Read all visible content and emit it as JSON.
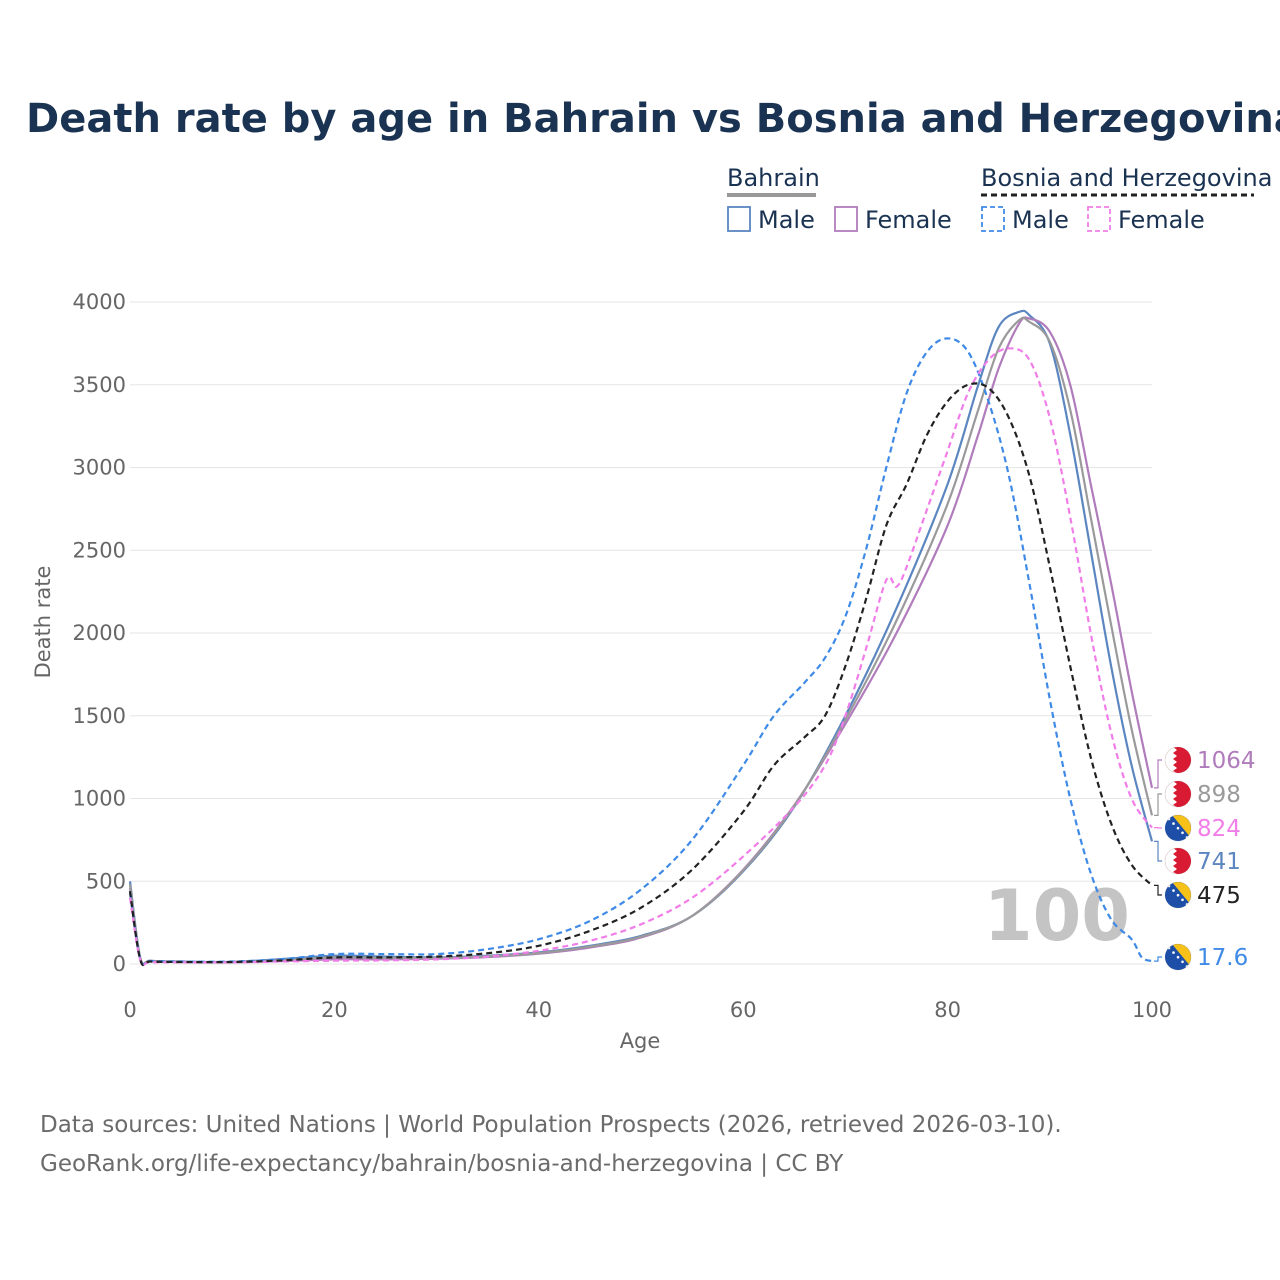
{
  "chart_data": {
    "type": "line",
    "title": "Death rate by age in Bahrain vs Bosnia and Herzegovina",
    "xlabel": "Age",
    "ylabel": "Death rate",
    "xlim": [
      0,
      100
    ],
    "ylim": [
      0,
      4000
    ],
    "x_ticks": [
      0,
      20,
      40,
      60,
      80,
      100
    ],
    "y_ticks": [
      0,
      500,
      1000,
      1500,
      2000,
      2500,
      3000,
      3500,
      4000
    ],
    "highlight_age": "100",
    "legend": {
      "groups": [
        {
          "country": "Bahrain",
          "line_color": "#999999",
          "line_style": "solid",
          "items": [
            "Male",
            "Female"
          ]
        },
        {
          "country": "Bosnia and Herzegovina",
          "line_color": "#222222",
          "line_style": "dashed",
          "items": [
            "Male",
            "Female"
          ]
        }
      ]
    },
    "series": [
      {
        "name": "Bahrain Male",
        "color": "#5b86c0",
        "dash": "solid",
        "end_label": "741",
        "flag": "bahrain",
        "points": [
          [
            0,
            500
          ],
          [
            1,
            40
          ],
          [
            2,
            20
          ],
          [
            5,
            15
          ],
          [
            10,
            13
          ],
          [
            15,
            30
          ],
          [
            20,
            50
          ],
          [
            25,
            45
          ],
          [
            30,
            40
          ],
          [
            35,
            50
          ],
          [
            40,
            70
          ],
          [
            45,
            110
          ],
          [
            50,
            170
          ],
          [
            55,
            290
          ],
          [
            60,
            560
          ],
          [
            65,
            950
          ],
          [
            70,
            1500
          ],
          [
            75,
            2150
          ],
          [
            80,
            2900
          ],
          [
            83,
            3500
          ],
          [
            85,
            3850
          ],
          [
            87,
            3940
          ],
          [
            88,
            3920
          ],
          [
            90,
            3750
          ],
          [
            92,
            3200
          ],
          [
            94,
            2500
          ],
          [
            96,
            1800
          ],
          [
            98,
            1200
          ],
          [
            100,
            741
          ]
        ]
      },
      {
        "name": "Bahrain Female",
        "color": "#b07cbb",
        "dash": "solid",
        "end_label": "1064",
        "flag": "bahrain",
        "points": [
          [
            0,
            460
          ],
          [
            1,
            35
          ],
          [
            2,
            18
          ],
          [
            5,
            12
          ],
          [
            10,
            10
          ],
          [
            15,
            18
          ],
          [
            20,
            28
          ],
          [
            25,
            28
          ],
          [
            30,
            32
          ],
          [
            35,
            42
          ],
          [
            40,
            62
          ],
          [
            45,
            100
          ],
          [
            50,
            160
          ],
          [
            55,
            290
          ],
          [
            60,
            570
          ],
          [
            65,
            960
          ],
          [
            70,
            1450
          ],
          [
            75,
            2000
          ],
          [
            80,
            2650
          ],
          [
            83,
            3200
          ],
          [
            85,
            3600
          ],
          [
            87,
            3870
          ],
          [
            88,
            3900
          ],
          [
            90,
            3820
          ],
          [
            92,
            3500
          ],
          [
            94,
            2900
          ],
          [
            96,
            2300
          ],
          [
            98,
            1650
          ],
          [
            100,
            1064
          ]
        ]
      },
      {
        "name": "Bahrain Total",
        "color": "#9a9a9a",
        "dash": "solid",
        "end_label": "898",
        "flag": "bahrain",
        "points": [
          [
            0,
            480
          ],
          [
            1,
            38
          ],
          [
            2,
            19
          ],
          [
            5,
            13
          ],
          [
            10,
            12
          ],
          [
            15,
            24
          ],
          [
            20,
            40
          ],
          [
            25,
            37
          ],
          [
            30,
            36
          ],
          [
            35,
            46
          ],
          [
            40,
            66
          ],
          [
            45,
            105
          ],
          [
            50,
            165
          ],
          [
            55,
            290
          ],
          [
            60,
            565
          ],
          [
            65,
            955
          ],
          [
            70,
            1475
          ],
          [
            75,
            2075
          ],
          [
            80,
            2780
          ],
          [
            83,
            3350
          ],
          [
            85,
            3720
          ],
          [
            87,
            3890
          ],
          [
            88,
            3880
          ],
          [
            90,
            3760
          ],
          [
            92,
            3350
          ],
          [
            94,
            2700
          ],
          [
            96,
            2050
          ],
          [
            98,
            1420
          ],
          [
            100,
            898
          ]
        ]
      },
      {
        "name": "Bosnia and Herzegovina Male",
        "color": "#3f8ae6",
        "dash": "dashed",
        "end_label": "17.6",
        "flag": "bosnia",
        "points": [
          [
            0,
            430
          ],
          [
            1,
            30
          ],
          [
            2,
            18
          ],
          [
            5,
            15
          ],
          [
            10,
            15
          ],
          [
            15,
            30
          ],
          [
            20,
            60
          ],
          [
            25,
            60
          ],
          [
            30,
            60
          ],
          [
            35,
            90
          ],
          [
            40,
            150
          ],
          [
            45,
            260
          ],
          [
            50,
            450
          ],
          [
            55,
            750
          ],
          [
            60,
            1200
          ],
          [
            63,
            1500
          ],
          [
            66,
            1700
          ],
          [
            68,
            1850
          ],
          [
            70,
            2100
          ],
          [
            72,
            2500
          ],
          [
            74,
            3000
          ],
          [
            76,
            3450
          ],
          [
            78,
            3700
          ],
          [
            80,
            3780
          ],
          [
            82,
            3700
          ],
          [
            84,
            3400
          ],
          [
            86,
            2950
          ],
          [
            88,
            2300
          ],
          [
            90,
            1600
          ],
          [
            92,
            1000
          ],
          [
            94,
            550
          ],
          [
            96,
            270
          ],
          [
            98,
            150
          ],
          [
            99,
            40
          ],
          [
            100,
            17.6
          ]
        ]
      },
      {
        "name": "Bosnia and Herzegovina Female",
        "color": "#f07de8",
        "dash": "dashed",
        "end_label": "824",
        "flag": "bosnia",
        "points": [
          [
            0,
            400
          ],
          [
            1,
            25
          ],
          [
            2,
            12
          ],
          [
            5,
            10
          ],
          [
            10,
            10
          ],
          [
            15,
            15
          ],
          [
            20,
            20
          ],
          [
            25,
            22
          ],
          [
            30,
            28
          ],
          [
            35,
            45
          ],
          [
            40,
            80
          ],
          [
            45,
            140
          ],
          [
            50,
            240
          ],
          [
            55,
            400
          ],
          [
            60,
            650
          ],
          [
            65,
            950
          ],
          [
            68,
            1200
          ],
          [
            70,
            1500
          ],
          [
            72,
            1900
          ],
          [
            74,
            2320
          ],
          [
            75,
            2280
          ],
          [
            76,
            2400
          ],
          [
            78,
            2750
          ],
          [
            80,
            3100
          ],
          [
            82,
            3450
          ],
          [
            84,
            3650
          ],
          [
            86,
            3720
          ],
          [
            88,
            3650
          ],
          [
            90,
            3300
          ],
          [
            92,
            2700
          ],
          [
            94,
            2000
          ],
          [
            96,
            1400
          ],
          [
            98,
            1000
          ],
          [
            100,
            824
          ]
        ]
      },
      {
        "name": "Bosnia and Herzegovina Total",
        "color": "#222222",
        "dash": "dashed",
        "end_label": "475",
        "flag": "bosnia",
        "points": [
          [
            0,
            440
          ],
          [
            1,
            28
          ],
          [
            2,
            15
          ],
          [
            5,
            12
          ],
          [
            10,
            12
          ],
          [
            15,
            22
          ],
          [
            20,
            40
          ],
          [
            25,
            40
          ],
          [
            30,
            45
          ],
          [
            35,
            65
          ],
          [
            40,
            110
          ],
          [
            45,
            200
          ],
          [
            50,
            340
          ],
          [
            55,
            570
          ],
          [
            60,
            920
          ],
          [
            63,
            1200
          ],
          [
            66,
            1370
          ],
          [
            68,
            1500
          ],
          [
            70,
            1800
          ],
          [
            72,
            2200
          ],
          [
            74,
            2650
          ],
          [
            76,
            2900
          ],
          [
            78,
            3200
          ],
          [
            80,
            3400
          ],
          [
            82,
            3500
          ],
          [
            84,
            3480
          ],
          [
            86,
            3300
          ],
          [
            88,
            2950
          ],
          [
            90,
            2400
          ],
          [
            92,
            1800
          ],
          [
            94,
            1250
          ],
          [
            96,
            850
          ],
          [
            98,
            600
          ],
          [
            100,
            475
          ]
        ]
      }
    ],
    "end_labels": [
      {
        "text": "1064",
        "color": "#b07cbb",
        "flag": "bahrain",
        "series": "Bahrain Female"
      },
      {
        "text": "898",
        "color": "#9a9a9a",
        "flag": "bahrain",
        "series": "Bahrain Total"
      },
      {
        "text": "824",
        "color": "#f07de8",
        "flag": "bosnia",
        "series": "Bosnia and Herzegovina Female"
      },
      {
        "text": "741",
        "color": "#5b86c0",
        "flag": "bahrain",
        "series": "Bahrain Male"
      },
      {
        "text": "475",
        "color": "#222222",
        "flag": "bosnia",
        "series": "Bosnia and Herzegovina Total"
      },
      {
        "text": "17.6",
        "color": "#3f8ae6",
        "flag": "bosnia",
        "series": "Bosnia and Herzegovina Male"
      }
    ]
  },
  "source": {
    "line1": "Data sources: United Nations | World Population Prospects (2026, retrieved 2026-03-10).",
    "line2": "GeoRank.org/life-expectancy/bahrain/bosnia-and-herzegovina | CC BY"
  }
}
